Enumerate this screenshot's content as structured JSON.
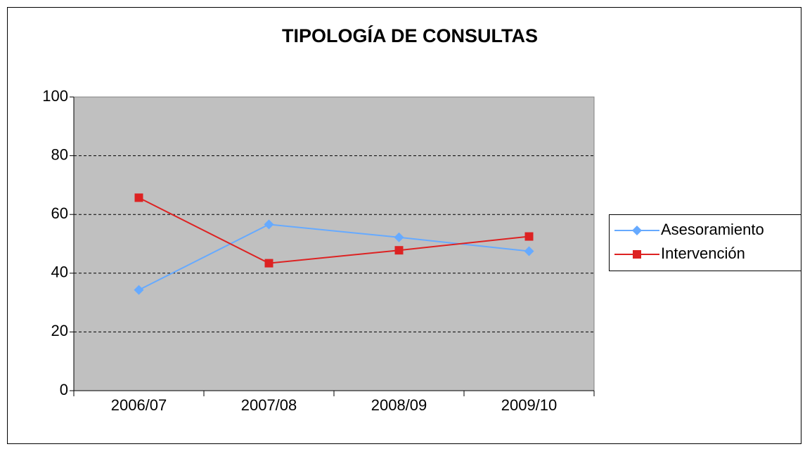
{
  "chart_data": {
    "type": "line",
    "title": "TIPOLOGÍA DE CONSULTAS",
    "categories": [
      "2006/07",
      "2007/08",
      "2008/09",
      "2009/10"
    ],
    "series": [
      {
        "name": "Asesoramiento",
        "color": "#66aaff",
        "marker": "diamond",
        "values": [
          34.3,
          56.6,
          52.2,
          47.5
        ]
      },
      {
        "name": "Intervención",
        "color": "#dd2222",
        "marker": "square",
        "values": [
          65.7,
          43.4,
          47.8,
          52.5
        ]
      }
    ],
    "ylim": [
      0,
      100
    ],
    "yticks": [
      0,
      20,
      40,
      60,
      80,
      100
    ],
    "grid": true,
    "legend": "right"
  }
}
